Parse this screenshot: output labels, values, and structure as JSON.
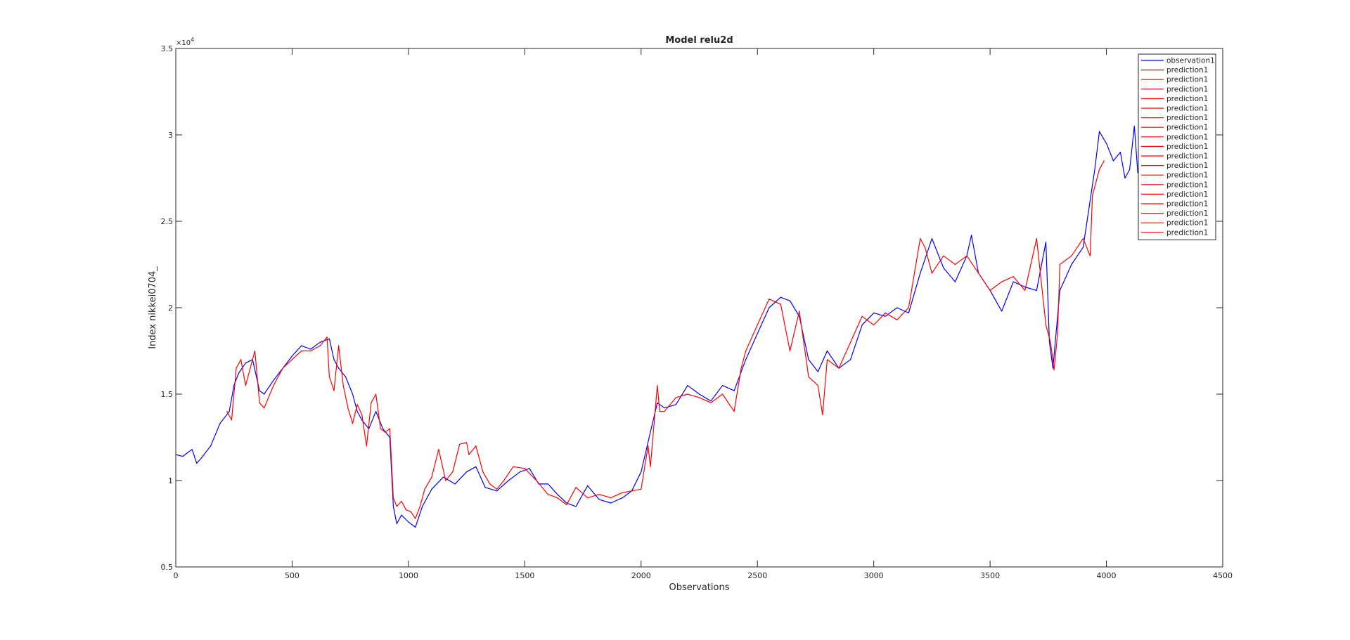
{
  "chart_data": {
    "type": "line",
    "title": "Model relu2d",
    "xlabel": "Observations",
    "ylabel": "Index nikkei0704_",
    "y_exponent_label": "×10",
    "y_exponent_power": "4",
    "xlim": [
      0,
      4500
    ],
    "ylim": [
      5000,
      35000
    ],
    "x_ticks": [
      0,
      500,
      1000,
      1500,
      2000,
      2500,
      3000,
      3500,
      4000,
      4500
    ],
    "x_tick_labels": [
      "0",
      "500",
      "1000",
      "1500",
      "2000",
      "2500",
      "3000",
      "3500",
      "4000",
      "4500"
    ],
    "y_ticks": [
      5000,
      10000,
      15000,
      20000,
      25000,
      30000,
      35000
    ],
    "y_tick_labels": [
      "0.5",
      "1",
      "1.5",
      "2",
      "2.5",
      "3",
      "3.5"
    ],
    "grid": false,
    "legend_position": "top-right",
    "legend_entries": [
      {
        "label": "observation1",
        "color": "#0000ff"
      },
      {
        "label": "prediction1",
        "color": "#ff0000"
      },
      {
        "label": "prediction1",
        "color": "#ff0000"
      },
      {
        "label": "prediction1",
        "color": "#ff0000"
      },
      {
        "label": "prediction1",
        "color": "#ff0000"
      },
      {
        "label": "prediction1",
        "color": "#ff0000"
      },
      {
        "label": "prediction1",
        "color": "#ff0000"
      },
      {
        "label": "prediction1",
        "color": "#ff0000"
      },
      {
        "label": "prediction1",
        "color": "#ff0000"
      },
      {
        "label": "prediction1",
        "color": "#ff0000"
      },
      {
        "label": "prediction1",
        "color": "#ff0000"
      },
      {
        "label": "prediction1",
        "color": "#ff0000"
      },
      {
        "label": "prediction1",
        "color": "#ff0000"
      },
      {
        "label": "prediction1",
        "color": "#ff0000"
      },
      {
        "label": "prediction1",
        "color": "#ff0000"
      },
      {
        "label": "prediction1",
        "color": "#ff0000"
      },
      {
        "label": "prediction1",
        "color": "#ff0000"
      },
      {
        "label": "prediction1",
        "color": "#ff0000"
      },
      {
        "label": "prediction1",
        "color": "#ff0000"
      }
    ],
    "series": [
      {
        "name": "observation1",
        "color": "#0000ff",
        "x": [
          0,
          30,
          50,
          70,
          90,
          110,
          150,
          190,
          230,
          250,
          270,
          300,
          330,
          360,
          380,
          420,
          460,
          500,
          540,
          580,
          620,
          660,
          680,
          700,
          730,
          760,
          780,
          800,
          830,
          860,
          890,
          920,
          935,
          950,
          970,
          1000,
          1030,
          1060,
          1100,
          1150,
          1200,
          1250,
          1290,
          1330,
          1380,
          1430,
          1480,
          1520,
          1560,
          1600,
          1640,
          1680,
          1720,
          1770,
          1820,
          1870,
          1920,
          1960,
          2000,
          2040,
          2070,
          2100,
          2150,
          2200,
          2250,
          2300,
          2350,
          2400,
          2450,
          2500,
          2550,
          2600,
          2640,
          2680,
          2720,
          2760,
          2800,
          2850,
          2900,
          2950,
          3000,
          3050,
          3100,
          3150,
          3200,
          3220,
          3250,
          3300,
          3350,
          3400,
          3420,
          3450,
          3500,
          3550,
          3600,
          3650,
          3700,
          3740,
          3755,
          3770,
          3800,
          3850,
          3900,
          3950,
          3970,
          4000,
          4030,
          4060,
          4080,
          4100,
          4120,
          4135
        ],
        "y": [
          11500,
          11400,
          11600,
          11800,
          11000,
          11300,
          12000,
          13300,
          14000,
          15500,
          16200,
          16800,
          17000,
          15200,
          15000,
          15800,
          16500,
          17200,
          17800,
          17600,
          18000,
          18200,
          17000,
          16500,
          16000,
          15000,
          14000,
          13500,
          13000,
          14000,
          13000,
          12500,
          8500,
          7500,
          8000,
          7600,
          7300,
          8500,
          9500,
          10200,
          9800,
          10500,
          10800,
          9600,
          9400,
          10000,
          10500,
          10700,
          9800,
          9800,
          9200,
          8700,
          8500,
          9700,
          8900,
          8700,
          9000,
          9400,
          10500,
          12800,
          14500,
          14200,
          14400,
          15500,
          15000,
          14600,
          15500,
          15200,
          17000,
          18500,
          20000,
          20600,
          20400,
          19500,
          17000,
          16300,
          17500,
          16500,
          17000,
          19000,
          19700,
          19500,
          20000,
          19700,
          22000,
          22800,
          24000,
          22300,
          21500,
          23000,
          24200,
          22000,
          21000,
          19800,
          21500,
          21200,
          21000,
          23800,
          18000,
          16500,
          21000,
          22500,
          23500,
          28000,
          30200,
          29500,
          28500,
          29000,
          27500,
          28000,
          30500,
          27800
        ]
      },
      {
        "name": "prediction1",
        "color": "#ff0000",
        "x": [
          220,
          240,
          260,
          280,
          300,
          320,
          340,
          360,
          380,
          420,
          460,
          500,
          540,
          580,
          620,
          650,
          660,
          680,
          700,
          720,
          740,
          760,
          780,
          800,
          820,
          840,
          860,
          880,
          900,
          920,
          935,
          950,
          970,
          990,
          1010,
          1030,
          1050,
          1070,
          1100,
          1130,
          1160,
          1190,
          1220,
          1250,
          1260,
          1290,
          1320,
          1350,
          1380,
          1410,
          1450,
          1500,
          1550,
          1600,
          1640,
          1680,
          1720,
          1770,
          1820,
          1870,
          1920,
          1960,
          2000,
          2030,
          2040,
          2070,
          2080,
          2100,
          2150,
          2200,
          2250,
          2300,
          2350,
          2400,
          2430,
          2450,
          2500,
          2550,
          2600,
          2640,
          2680,
          2720,
          2760,
          2780,
          2800,
          2850,
          2900,
          2950,
          3000,
          3050,
          3100,
          3150,
          3200,
          3220,
          3250,
          3300,
          3350,
          3400,
          3450,
          3500,
          3550,
          3600,
          3650,
          3700,
          3740,
          3760,
          3775,
          3790,
          3800,
          3850,
          3900,
          3930,
          3940,
          3970,
          3990
        ],
        "y": [
          14000,
          13500,
          16500,
          17000,
          15500,
          16500,
          17500,
          14500,
          14200,
          15500,
          16500,
          17000,
          17500,
          17500,
          17800,
          18300,
          16000,
          15200,
          17800,
          15500,
          14200,
          13300,
          14400,
          13800,
          12000,
          14500,
          15000,
          13000,
          12800,
          13000,
          9000,
          8500,
          8800,
          8300,
          8200,
          7800,
          8500,
          9500,
          10200,
          11800,
          10000,
          10500,
          12100,
          12200,
          11500,
          12000,
          10500,
          9800,
          9500,
          10000,
          10800,
          10700,
          10000,
          9200,
          9000,
          8600,
          9600,
          9000,
          9200,
          9000,
          9300,
          9400,
          9500,
          12000,
          10800,
          15500,
          14000,
          14000,
          14800,
          15000,
          14800,
          14500,
          15000,
          14000,
          16500,
          17500,
          19000,
          20500,
          20200,
          17500,
          19800,
          16000,
          15500,
          13800,
          17000,
          16500,
          18000,
          19500,
          19000,
          19700,
          19300,
          20000,
          24000,
          23500,
          22000,
          23000,
          22500,
          23000,
          22000,
          21000,
          21500,
          21800,
          21000,
          24000,
          19000,
          18000,
          16400,
          18500,
          22500,
          23000,
          24000,
          23000,
          26500,
          28000,
          28500
        ]
      }
    ]
  }
}
